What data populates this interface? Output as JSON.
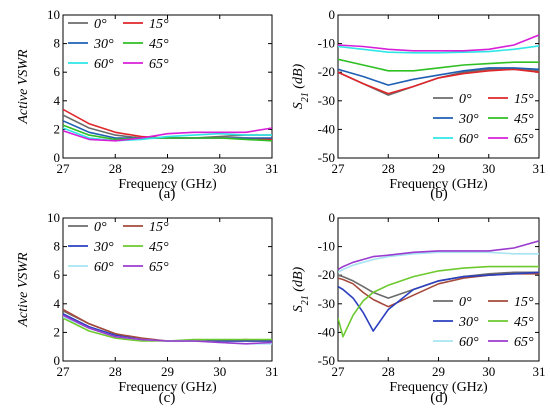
{
  "figure": {
    "deg": "°",
    "panels": [
      "(a)",
      "(b)",
      "(c)",
      "(d)"
    ]
  },
  "chart_data": [
    {
      "type": "line",
      "panel": "(a)",
      "xlabel": "Frequency (GHz)",
      "ylabel": "Active VSWR",
      "xlim": [
        27,
        31
      ],
      "ylim": [
        0,
        10
      ],
      "xticks": [
        27,
        28,
        29,
        30,
        31
      ],
      "yticks": [
        0,
        2,
        4,
        6,
        8,
        10
      ],
      "legend_position": "top-left",
      "x": [
        27,
        27.5,
        28,
        28.5,
        29,
        29.5,
        30,
        30.5,
        31
      ],
      "series": [
        {
          "name": "0",
          "color": "#6b6b6b",
          "values": [
            3.0,
            2.1,
            1.6,
            1.4,
            1.4,
            1.4,
            1.5,
            1.6,
            1.6
          ]
        },
        {
          "name": "15",
          "color": "#e0262b",
          "values": [
            3.4,
            2.4,
            1.8,
            1.5,
            1.4,
            1.4,
            1.4,
            1.4,
            1.3
          ]
        },
        {
          "name": "30",
          "color": "#1f5fb4",
          "values": [
            2.6,
            1.8,
            1.4,
            1.4,
            1.4,
            1.4,
            1.4,
            1.4,
            1.4
          ]
        },
        {
          "name": "45",
          "color": "#2fbf23",
          "values": [
            2.3,
            1.6,
            1.3,
            1.4,
            1.4,
            1.4,
            1.4,
            1.3,
            1.2
          ]
        },
        {
          "name": "60",
          "color": "#2ee6e6",
          "values": [
            2.1,
            1.4,
            1.2,
            1.3,
            1.5,
            1.6,
            1.7,
            1.6,
            1.6
          ]
        },
        {
          "name": "65",
          "color": "#d81fd8",
          "values": [
            1.9,
            1.3,
            1.2,
            1.4,
            1.7,
            1.8,
            1.8,
            1.8,
            2.1
          ]
        }
      ]
    },
    {
      "type": "line",
      "panel": "(b)",
      "xlabel": "Frequency (GHz)",
      "ylabel": "S21 (dB)",
      "xlim": [
        27,
        31
      ],
      "ylim": [
        -50,
        0
      ],
      "xticks": [
        27,
        28,
        29,
        30,
        31
      ],
      "yticks": [
        -50,
        -40,
        -30,
        -20,
        -10,
        0
      ],
      "legend_position": "bottom-right",
      "x": [
        27,
        27.5,
        28,
        28.5,
        29,
        29.5,
        30,
        30.5,
        31
      ],
      "series": [
        {
          "name": "0",
          "color": "#6b6b6b",
          "values": [
            -20,
            -24,
            -28,
            -25,
            -22,
            -20,
            -19,
            -19,
            -19.5
          ]
        },
        {
          "name": "15",
          "color": "#e0262b",
          "values": [
            -20,
            -24,
            -27.5,
            -25,
            -22,
            -20.5,
            -19.5,
            -19,
            -20
          ]
        },
        {
          "name": "30",
          "color": "#1f5fb4",
          "values": [
            -19,
            -21.5,
            -24.5,
            -22.5,
            -21,
            -19.5,
            -18.5,
            -18.5,
            -19
          ]
        },
        {
          "name": "45",
          "color": "#2fbf23",
          "values": [
            -15.5,
            -17.5,
            -19.5,
            -19.5,
            -18.5,
            -17.5,
            -17,
            -16.5,
            -16.5
          ]
        },
        {
          "name": "60",
          "color": "#2ee6e6",
          "values": [
            -11,
            -12,
            -13,
            -13.2,
            -13.2,
            -13,
            -12.8,
            -12,
            -10.8
          ]
        },
        {
          "name": "65",
          "color": "#d81fd8",
          "values": [
            -10.5,
            -11,
            -12,
            -12.5,
            -12.5,
            -12.5,
            -12,
            -10.5,
            -7
          ]
        }
      ]
    },
    {
      "type": "line",
      "panel": "(c)",
      "xlabel": "Frequency (GHz)",
      "ylabel": "Active VSWR",
      "xlim": [
        27,
        31
      ],
      "ylim": [
        0,
        10
      ],
      "xticks": [
        27,
        28,
        29,
        30,
        31
      ],
      "yticks": [
        0,
        2,
        4,
        6,
        8,
        10
      ],
      "legend_position": "top-left",
      "x": [
        27,
        27.5,
        28,
        28.5,
        29,
        29.5,
        30,
        30.5,
        31
      ],
      "series": [
        {
          "name": "0",
          "color": "#6b6b6b",
          "values": [
            3.5,
            2.6,
            1.9,
            1.5,
            1.4,
            1.4,
            1.4,
            1.4,
            1.4
          ]
        },
        {
          "name": "15",
          "color": "#a64a3c",
          "values": [
            3.6,
            2.6,
            1.9,
            1.6,
            1.4,
            1.4,
            1.4,
            1.5,
            1.4
          ]
        },
        {
          "name": "30",
          "color": "#2b3fbf",
          "values": [
            3.3,
            2.4,
            1.8,
            1.5,
            1.4,
            1.4,
            1.4,
            1.4,
            1.4
          ]
        },
        {
          "name": "45",
          "color": "#6cc92e",
          "values": [
            3.0,
            2.1,
            1.6,
            1.4,
            1.4,
            1.5,
            1.5,
            1.5,
            1.5
          ]
        },
        {
          "name": "60",
          "color": "#a6e4f2",
          "values": [
            3.1,
            2.3,
            1.7,
            1.5,
            1.4,
            1.4,
            1.3,
            1.2,
            1.2
          ]
        },
        {
          "name": "65",
          "color": "#9b3ccf",
          "values": [
            3.2,
            2.3,
            1.7,
            1.5,
            1.4,
            1.4,
            1.3,
            1.2,
            1.3
          ]
        }
      ]
    },
    {
      "type": "line",
      "panel": "(d)",
      "xlabel": "Frequency (GHz)",
      "ylabel": "S21 (dB)",
      "xlim": [
        27,
        31
      ],
      "ylim": [
        -50,
        0
      ],
      "xticks": [
        27,
        28,
        29,
        30,
        31
      ],
      "yticks": [
        -50,
        -40,
        -30,
        -20,
        -10,
        0
      ],
      "legend_position": "bottom-right",
      "x": [
        27,
        27.1,
        27.3,
        27.5,
        27.7,
        28,
        28.5,
        29,
        29.5,
        30,
        30.5,
        31
      ],
      "series": [
        {
          "name": "0",
          "color": "#6b6b6b",
          "values": [
            -20,
            -20.5,
            -22,
            -24,
            -26,
            -28,
            -25,
            -22,
            -20.5,
            -19.5,
            -19,
            -19
          ]
        },
        {
          "name": "15",
          "color": "#a64a3c",
          "values": [
            -21,
            -21.5,
            -23,
            -26,
            -28.5,
            -31,
            -27,
            -23,
            -21,
            -20,
            -19.5,
            -19.5
          ]
        },
        {
          "name": "30",
          "color": "#2b3fbf",
          "values": [
            -24,
            -25,
            -28,
            -33,
            -39.5,
            -32,
            -25,
            -22,
            -20.5,
            -20,
            -19.5,
            -19
          ]
        },
        {
          "name": "45",
          "color": "#6cc92e",
          "values": [
            -35,
            -41.5,
            -34,
            -29,
            -26,
            -23.5,
            -20.5,
            -18.5,
            -17.5,
            -17,
            -17,
            -17
          ]
        },
        {
          "name": "60",
          "color": "#a6e4f2",
          "values": [
            -19,
            -18,
            -16.5,
            -15.5,
            -14.5,
            -13.5,
            -12.5,
            -12,
            -12,
            -12,
            -12.5,
            -12.5
          ]
        },
        {
          "name": "65",
          "color": "#9b3ccf",
          "values": [
            -18,
            -17,
            -15.5,
            -14.5,
            -13.5,
            -13,
            -12,
            -11.5,
            -11.5,
            -11.5,
            -10.5,
            -8
          ]
        }
      ]
    }
  ]
}
